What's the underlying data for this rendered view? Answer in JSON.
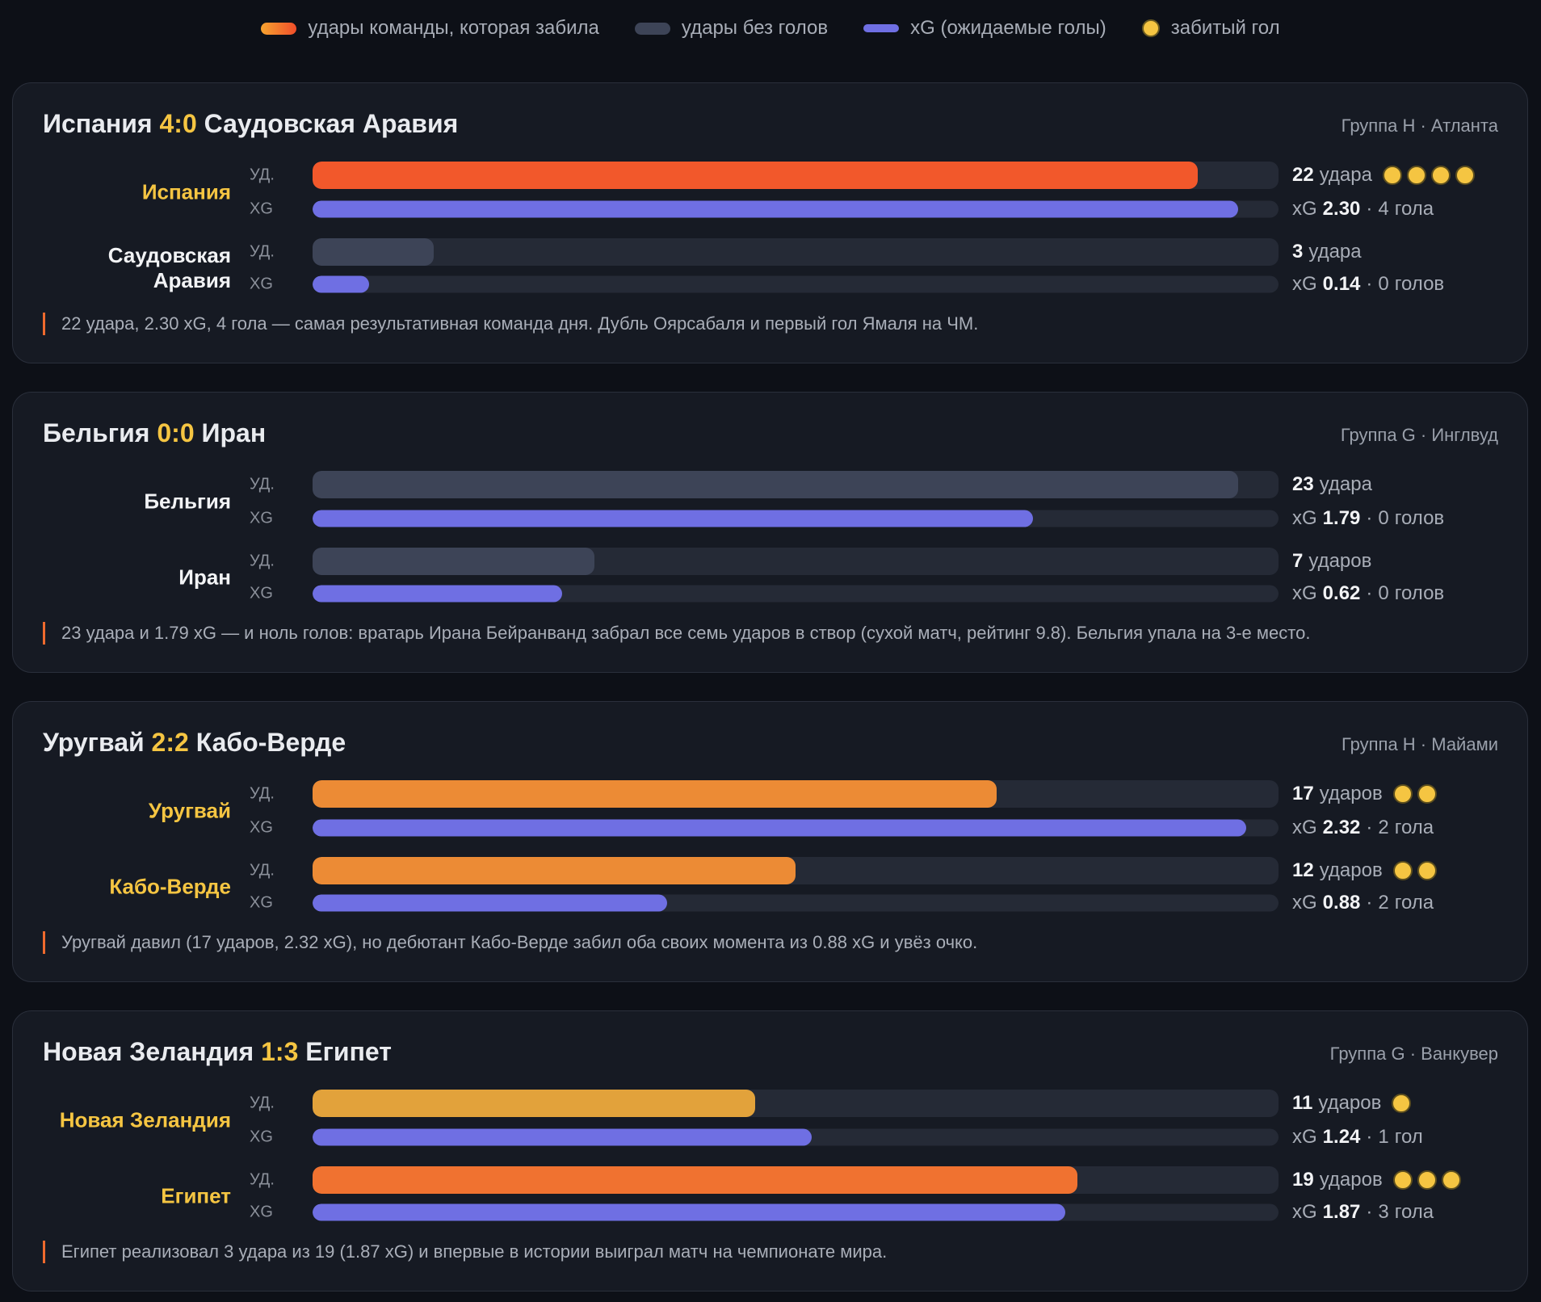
{
  "legend": [
    "удары команды, которая забила",
    "удары без голов",
    "xG (ожидаемые голы)",
    "забитый гол"
  ],
  "row_labels": {
    "shots": "УД.",
    "xg": "XG"
  },
  "xg_prefix": "xG",
  "sep": "·",
  "shots_xlim": [
    0,
    24
  ],
  "xg_xlim": [
    0,
    2.4
  ],
  "shots_empty_color": "#3d4457",
  "xg_color": "#6f6fe3",
  "goal_color": "#f5c542",
  "matches": [
    {
      "score": "4:0",
      "meta": "Группа H · Атланта",
      "teams": [
        {
          "name": "Испания",
          "shots": 22,
          "shots_word": "удара",
          "shots_color": "#f2582b",
          "xg": 2.3,
          "xg_label": "2.30",
          "goals": 4,
          "goals_word": "гола"
        },
        {
          "name": "Саудовская Аравия",
          "shots": 3,
          "shots_word": "удара",
          "shots_color": "#3d4457",
          "xg": 0.14,
          "xg_label": "0.14",
          "goals": 0,
          "goals_word": "голов"
        }
      ],
      "note": "22 удара, 2.30 xG, 4 гола — самая результативная команда дня. Дубль Оярсабаля и первый гол Ямаля на ЧМ."
    },
    {
      "score": "0:0",
      "meta": "Группа G · Инглвуд",
      "teams": [
        {
          "name": "Бельгия",
          "shots": 23,
          "shots_word": "удара",
          "shots_color": "#3d4457",
          "xg": 1.79,
          "xg_label": "1.79",
          "goals": 0,
          "goals_word": "голов"
        },
        {
          "name": "Иран",
          "shots": 7,
          "shots_word": "ударов",
          "shots_color": "#3d4457",
          "xg": 0.62,
          "xg_label": "0.62",
          "goals": 0,
          "goals_word": "голов"
        }
      ],
      "note": "23 удара и 1.79 xG — и ноль голов: вратарь Ирана Бейранванд забрал все семь ударов в створ (сухой матч, рейтинг 9.8). Бельгия упала на 3-е место."
    },
    {
      "score": "2:2",
      "meta": "Группа H · Майами",
      "teams": [
        {
          "name": "Уругвай",
          "shots": 17,
          "shots_word": "ударов",
          "shots_color": "#ec8b35",
          "xg": 2.32,
          "xg_label": "2.32",
          "goals": 2,
          "goals_word": "гола"
        },
        {
          "name": "Кабо-Верде",
          "shots": 12,
          "shots_word": "ударов",
          "shots_color": "#ec8b35",
          "xg": 0.88,
          "xg_label": "0.88",
          "goals": 2,
          "goals_word": "гола"
        }
      ],
      "note": "Уругвай давил (17 ударов, 2.32 xG), но дебютант Кабо-Верде забил оба своих момента из 0.88 xG и увёз очко."
    },
    {
      "score": "1:3",
      "meta": "Группа G · Ванкувер",
      "teams": [
        {
          "name": "Новая Зеландия",
          "shots": 11,
          "shots_word": "ударов",
          "shots_color": "#e2a23b",
          "xg": 1.24,
          "xg_label": "1.24",
          "goals": 1,
          "goals_word": "гол"
        },
        {
          "name": "Египет",
          "shots": 19,
          "shots_word": "ударов",
          "shots_color": "#f07230",
          "xg": 1.87,
          "xg_label": "1.87",
          "goals": 3,
          "goals_word": "гола"
        }
      ],
      "note": "Египет реализовал 3 удара из 19 (1.87 xG) и впервые в истории выиграл матч на чемпионате мира."
    }
  ]
}
